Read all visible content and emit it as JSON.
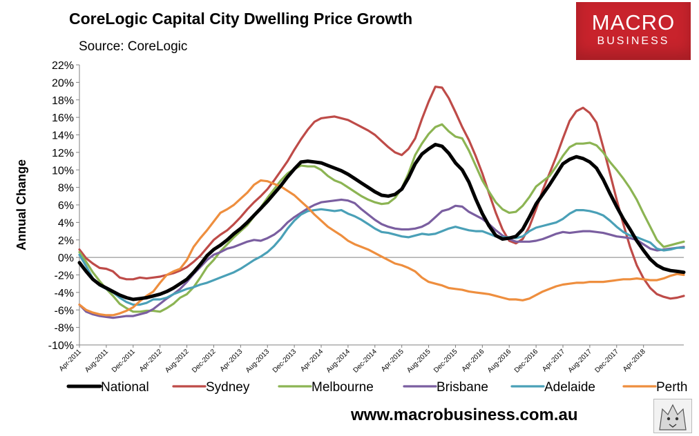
{
  "header": {
    "title": "CoreLogic Capital City Dwelling Price Growth",
    "source": "Source: CoreLogic"
  },
  "logo": {
    "line1": "MACRO",
    "line2": "BUSINESS"
  },
  "footer": {
    "url": "www.macrobusiness.com.au"
  },
  "chart_data": {
    "type": "line",
    "title": "CoreLogic Capital City Dwelling Price Growth",
    "xlabel": "",
    "ylabel": "Annual Change",
    "ylim": [
      -10,
      22
    ],
    "ytick_step": 2,
    "grid": false,
    "legend": "bottom",
    "x_months": [
      "Apr-2011",
      "May-2011",
      "Jun-2011",
      "Jul-2011",
      "Aug-2011",
      "Sep-2011",
      "Oct-2011",
      "Nov-2011",
      "Dec-2011",
      "Jan-2012",
      "Feb-2012",
      "Mar-2012",
      "Apr-2012",
      "May-2012",
      "Jun-2012",
      "Jul-2012",
      "Aug-2012",
      "Sep-2012",
      "Oct-2012",
      "Nov-2012",
      "Dec-2012",
      "Jan-2013",
      "Feb-2013",
      "Mar-2013",
      "Apr-2013",
      "May-2013",
      "Jun-2013",
      "Jul-2013",
      "Aug-2013",
      "Sep-2013",
      "Oct-2013",
      "Nov-2013",
      "Dec-2013",
      "Jan-2014",
      "Feb-2014",
      "Mar-2014",
      "Apr-2014",
      "May-2014",
      "Jun-2014",
      "Jul-2014",
      "Aug-2014",
      "Sep-2014",
      "Oct-2014",
      "Nov-2014",
      "Dec-2014",
      "Jan-2015",
      "Feb-2015",
      "Mar-2015",
      "Apr-2015",
      "May-2015",
      "Jun-2015",
      "Jul-2015",
      "Aug-2015",
      "Sep-2015",
      "Oct-2015",
      "Nov-2015",
      "Dec-2015",
      "Jan-2016",
      "Feb-2016",
      "Mar-2016",
      "Apr-2016",
      "May-2016",
      "Jun-2016",
      "Jul-2016",
      "Aug-2016",
      "Sep-2016",
      "Oct-2016",
      "Nov-2016",
      "Dec-2016",
      "Jan-2017",
      "Feb-2017",
      "Mar-2017",
      "Apr-2017",
      "May-2017",
      "Jun-2017",
      "Jul-2017",
      "Aug-2017",
      "Sep-2017",
      "Oct-2017",
      "Nov-2017",
      "Dec-2017",
      "Jan-2018",
      "Feb-2018",
      "Mar-2018",
      "Apr-2018",
      "May-2018",
      "Jun-2018",
      "Jul-2018",
      "Aug-2018",
      "Sep-2018",
      "Oct-2018"
    ],
    "tick_labels": [
      "Apr-2011",
      "Aug-2011",
      "Dec-2011",
      "Apr-2012",
      "Aug-2012",
      "Dec-2012",
      "Apr-2013",
      "Aug-2013",
      "Dec-2013",
      "Apr-2014",
      "Aug-2014",
      "Dec-2014",
      "Apr-2015",
      "Aug-2015",
      "Dec-2015",
      "Apr-2016",
      "Aug-2016",
      "Dec-2016",
      "Apr-2017",
      "Aug-2017",
      "Dec-2017",
      "Apr-2018"
    ],
    "series": [
      {
        "name": "Sydney",
        "color": "#be4b48",
        "width": 3.2,
        "values": [
          0.9,
          -0.1,
          -0.7,
          -1.2,
          -1.3,
          -1.6,
          -2.3,
          -2.5,
          -2.5,
          -2.3,
          -2.4,
          -2.3,
          -2.2,
          -2.0,
          -1.8,
          -1.5,
          -1.1,
          -0.5,
          0.2,
          1.1,
          2.0,
          2.6,
          3.1,
          3.8,
          4.6,
          5.5,
          6.3,
          7.0,
          7.8,
          8.8,
          9.9,
          11.0,
          12.3,
          13.5,
          14.6,
          15.5,
          15.9,
          16.0,
          16.1,
          15.9,
          15.7,
          15.3,
          14.9,
          14.5,
          14.0,
          13.3,
          12.6,
          12.0,
          11.7,
          12.4,
          13.6,
          15.8,
          17.8,
          19.5,
          19.4,
          18.2,
          16.6,
          14.9,
          13.4,
          11.6,
          9.6,
          7.3,
          5.1,
          3.2,
          1.9,
          1.6,
          2.1,
          3.5,
          5.5,
          7.7,
          9.6,
          11.5,
          13.6,
          15.6,
          16.7,
          17.1,
          16.5,
          15.4,
          12.6,
          9.6,
          6.6,
          3.8,
          1.2,
          -0.9,
          -2.4,
          -3.5,
          -4.2,
          -4.5,
          -4.7,
          -4.6,
          -4.4
        ]
      },
      {
        "name": "Melbourne",
        "color": "#8cb453",
        "width": 3.2,
        "values": [
          0.6,
          -0.5,
          -1.7,
          -2.7,
          -3.6,
          -4.4,
          -5.3,
          -5.8,
          -6.2,
          -6.2,
          -6.1,
          -6.1,
          -6.2,
          -5.8,
          -5.3,
          -4.6,
          -4.2,
          -3.4,
          -2.3,
          -1.1,
          -0.3,
          0.7,
          1.5,
          2.3,
          3.0,
          3.7,
          4.7,
          5.7,
          6.8,
          7.8,
          8.8,
          9.6,
          10.1,
          10.5,
          10.4,
          10.4,
          10.0,
          9.3,
          8.8,
          8.5,
          8.0,
          7.5,
          7.0,
          6.6,
          6.3,
          6.1,
          6.2,
          6.8,
          7.9,
          9.6,
          11.7,
          13.0,
          14.1,
          14.9,
          15.2,
          14.4,
          13.8,
          13.6,
          12.2,
          10.5,
          8.8,
          7.5,
          6.3,
          5.5,
          5.1,
          5.2,
          5.9,
          6.9,
          8.1,
          8.7,
          9.3,
          10.4,
          11.6,
          12.6,
          13.0,
          13.0,
          13.1,
          12.8,
          12.0,
          10.9,
          10.0,
          9.0,
          7.9,
          6.6,
          5.0,
          3.5,
          2.0,
          1.2,
          1.4,
          1.6,
          1.8
        ]
      },
      {
        "name": "Brisbane",
        "color": "#7a5ea0",
        "width": 3.2,
        "values": [
          -5.4,
          -6.2,
          -6.5,
          -6.7,
          -6.8,
          -6.9,
          -6.8,
          -6.7,
          -6.7,
          -6.5,
          -6.3,
          -5.9,
          -5.3,
          -4.7,
          -4.2,
          -3.6,
          -2.8,
          -1.9,
          -1.1,
          -0.3,
          0.3,
          0.6,
          1.0,
          1.2,
          1.5,
          1.8,
          2.0,
          1.9,
          2.2,
          2.6,
          3.2,
          4.0,
          4.6,
          5.1,
          5.6,
          6.0,
          6.3,
          6.4,
          6.5,
          6.6,
          6.5,
          6.2,
          5.5,
          4.9,
          4.3,
          3.8,
          3.5,
          3.3,
          3.2,
          3.2,
          3.3,
          3.5,
          3.9,
          4.6,
          5.3,
          5.5,
          5.9,
          5.8,
          5.2,
          4.8,
          4.4,
          3.8,
          3.1,
          2.5,
          2.1,
          1.8,
          1.8,
          1.8,
          1.9,
          2.1,
          2.4,
          2.7,
          2.9,
          2.8,
          2.9,
          3.0,
          3.0,
          2.9,
          2.8,
          2.6,
          2.4,
          2.3,
          2.2,
          2.0,
          1.5,
          1.0,
          0.8,
          0.9,
          1.0,
          1.1,
          1.2
        ]
      },
      {
        "name": "Adelaide",
        "color": "#4aa0b7",
        "width": 3.2,
        "values": [
          0.3,
          -1.0,
          -2.4,
          -3.2,
          -3.6,
          -4.0,
          -4.6,
          -5.1,
          -5.4,
          -5.4,
          -5.2,
          -4.8,
          -4.8,
          -4.6,
          -4.2,
          -3.9,
          -3.6,
          -3.4,
          -3.1,
          -2.9,
          -2.6,
          -2.3,
          -2.0,
          -1.7,
          -1.3,
          -0.8,
          -0.3,
          0.1,
          0.6,
          1.3,
          2.2,
          3.3,
          4.2,
          4.9,
          5.3,
          5.4,
          5.5,
          5.4,
          5.3,
          5.4,
          5.0,
          4.7,
          4.3,
          3.8,
          3.3,
          2.9,
          2.8,
          2.6,
          2.4,
          2.3,
          2.5,
          2.7,
          2.6,
          2.7,
          3.0,
          3.3,
          3.5,
          3.3,
          3.1,
          3.0,
          3.0,
          2.7,
          2.4,
          2.3,
          2.3,
          2.2,
          2.4,
          3.0,
          3.4,
          3.6,
          3.8,
          4.0,
          4.4,
          5.0,
          5.4,
          5.4,
          5.3,
          5.1,
          4.8,
          4.2,
          3.5,
          2.9,
          2.5,
          2.3,
          2.0,
          1.7,
          1.0,
          0.8,
          0.9,
          1.1,
          1.1
        ]
      },
      {
        "name": "Perth",
        "color": "#ee8e3e",
        "width": 3.2,
        "values": [
          -5.4,
          -6.0,
          -6.3,
          -6.5,
          -6.6,
          -6.6,
          -6.4,
          -6.1,
          -5.7,
          -5.0,
          -4.4,
          -3.9,
          -2.9,
          -2.0,
          -1.6,
          -1.3,
          -0.3,
          1.2,
          2.2,
          3.1,
          4.1,
          5.1,
          5.5,
          6.0,
          6.7,
          7.4,
          8.3,
          8.8,
          8.7,
          8.4,
          8.1,
          7.6,
          7.1,
          6.4,
          5.7,
          4.9,
          4.2,
          3.5,
          3.0,
          2.5,
          1.9,
          1.5,
          1.2,
          0.9,
          0.5,
          0.1,
          -0.3,
          -0.7,
          -0.9,
          -1.2,
          -1.6,
          -2.3,
          -2.8,
          -3.0,
          -3.2,
          -3.5,
          -3.6,
          -3.7,
          -3.9,
          -4.0,
          -4.1,
          -4.2,
          -4.4,
          -4.6,
          -4.8,
          -4.8,
          -4.9,
          -4.7,
          -4.3,
          -3.9,
          -3.6,
          -3.3,
          -3.1,
          -3.0,
          -2.9,
          -2.9,
          -2.8,
          -2.8,
          -2.8,
          -2.7,
          -2.6,
          -2.5,
          -2.5,
          -2.4,
          -2.5,
          -2.6,
          -2.6,
          -2.4,
          -2.1,
          -1.9,
          -2.0
        ]
      },
      {
        "name": "National",
        "color": "#000000",
        "width": 5,
        "values": [
          -0.6,
          -1.6,
          -2.5,
          -3.1,
          -3.5,
          -3.9,
          -4.3,
          -4.6,
          -4.8,
          -4.7,
          -4.6,
          -4.4,
          -4.2,
          -3.9,
          -3.5,
          -3.0,
          -2.5,
          -1.7,
          -0.8,
          0.2,
          0.9,
          1.4,
          2.0,
          2.7,
          3.3,
          4.0,
          4.8,
          5.6,
          6.4,
          7.3,
          8.2,
          9.2,
          10.1,
          10.9,
          11.0,
          10.9,
          10.8,
          10.5,
          10.2,
          9.9,
          9.5,
          9.0,
          8.5,
          8.0,
          7.5,
          7.1,
          7.0,
          7.2,
          7.8,
          9.1,
          10.7,
          11.8,
          12.4,
          12.9,
          12.7,
          11.9,
          10.8,
          10.0,
          8.6,
          6.7,
          5.0,
          3.6,
          2.5,
          2.1,
          2.2,
          2.4,
          3.2,
          4.6,
          6.1,
          7.2,
          8.3,
          9.5,
          10.7,
          11.2,
          11.5,
          11.3,
          10.9,
          10.2,
          8.9,
          7.3,
          5.8,
          4.4,
          3.2,
          1.9,
          0.8,
          -0.2,
          -0.9,
          -1.3,
          -1.5,
          -1.6,
          -1.7
        ]
      }
    ],
    "legend_order": [
      "National",
      "Sydney",
      "Melbourne",
      "Brisbane",
      "Adelaide",
      "Perth"
    ]
  }
}
